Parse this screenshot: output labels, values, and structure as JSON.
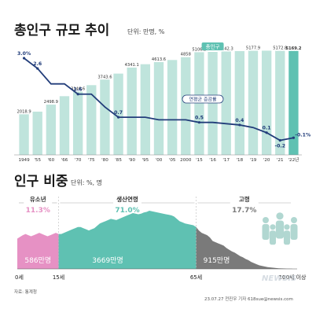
{
  "chart_data": [
    {
      "type": "bar",
      "title": "총인구 규모 추이",
      "unit": "단위: 만명, %",
      "categories": [
        "1949",
        "'55",
        "'60",
        "'66",
        "'70",
        "'75",
        "'80",
        "'85",
        "'90",
        "'95",
        "'00",
        "'05",
        "2000",
        "'15",
        "'16",
        "'17",
        "'18",
        "'19",
        "'20",
        "'21",
        "'22년"
      ],
      "values": [
        2018.9,
        2150.3,
        2498.9,
        2919.3,
        3146.6,
        3467.9,
        3743.6,
        4041.9,
        4341.1,
        4509.3,
        4613.6,
        4718.6,
        4858,
        5106.9,
        5121.8,
        5142.3,
        5160.7,
        5177.9,
        5183.6,
        5172.8,
        5169.2
      ],
      "value_labels": [
        "2018.9",
        "",
        "2498.9",
        "",
        "3146.6",
        "",
        "3743.6",
        "",
        "4341.1",
        "",
        "4613.6",
        "",
        "4858",
        "5106.9",
        "",
        "5142.3",
        "",
        "5177.9",
        "",
        "5172.8",
        "5169.2"
      ],
      "highlight_label": "총인구",
      "highlight_color": "#5fc1b2",
      "bar_color": "#bfe4dc",
      "line": {
        "name": "연평균 증감률",
        "values": [
          3.0,
          2.6,
          2.0,
          2.0,
          1.6,
          1.6,
          1.1,
          0.7,
          0.7,
          0.7,
          0.6,
          0.6,
          0.6,
          0.5,
          0.5,
          0.45,
          0.4,
          0.3,
          0.1,
          -0.2,
          -0.1
        ],
        "labels": [
          "3.0%",
          "2.6",
          "",
          "",
          "1.6",
          "",
          "",
          "0.7",
          "",
          "",
          "",
          "",
          "",
          "0.5",
          "",
          "",
          "0.4",
          "",
          "0.1",
          "-0.2",
          "-0.1%"
        ],
        "color": "#223d7a"
      }
    },
    {
      "type": "area",
      "title": "인구 비중",
      "unit": "단위: %, 명",
      "groups": [
        {
          "name": "유소년",
          "pct": "11.3%",
          "pop": "586만명",
          "color": "#e691c4"
        },
        {
          "name": "생산연령",
          "pct": "71.0%",
          "pop": "3669만명",
          "color": "#5fc1b2"
        },
        {
          "name": "고령",
          "pct": "17.7%",
          "pop": "915만명",
          "color": "#7a7a7a"
        }
      ],
      "age_ticks": [
        "0세",
        "15세",
        "65세",
        "100세 이상"
      ],
      "profile": [
        0.52,
        0.55,
        0.58,
        0.6,
        0.58,
        0.56,
        0.58,
        0.6,
        0.62,
        0.6,
        0.58,
        0.56,
        0.58,
        0.6,
        0.62,
        0.6,
        0.6,
        0.62,
        0.64,
        0.66,
        0.68,
        0.7,
        0.72,
        0.72,
        0.7,
        0.68,
        0.66,
        0.68,
        0.7,
        0.74,
        0.78,
        0.8,
        0.82,
        0.84,
        0.86,
        0.85,
        0.84,
        0.86,
        0.88,
        0.9,
        0.92,
        0.94,
        0.96,
        0.95,
        0.94,
        0.95,
        0.97,
        0.98,
        1.0,
        0.99,
        0.98,
        0.97,
        0.96,
        0.95,
        0.94,
        0.93,
        0.92,
        0.9,
        0.86,
        0.82,
        0.8,
        0.78,
        0.77,
        0.76,
        0.75,
        0.72,
        0.66,
        0.62,
        0.6,
        0.58,
        0.54,
        0.48,
        0.46,
        0.44,
        0.42,
        0.4,
        0.36,
        0.33,
        0.3,
        0.28,
        0.25,
        0.22,
        0.2,
        0.17,
        0.15,
        0.12,
        0.1,
        0.08,
        0.06,
        0.05,
        0.04,
        0.03,
        0.025,
        0.02,
        0.015,
        0.01,
        0.008,
        0.006,
        0.004,
        0.003,
        0.002
      ]
    }
  ],
  "footer": {
    "source": "자료: 통계청",
    "credit": "23.07.27 전진우 기자 618sue@newsis.com",
    "watermark": "NEWSIS"
  }
}
